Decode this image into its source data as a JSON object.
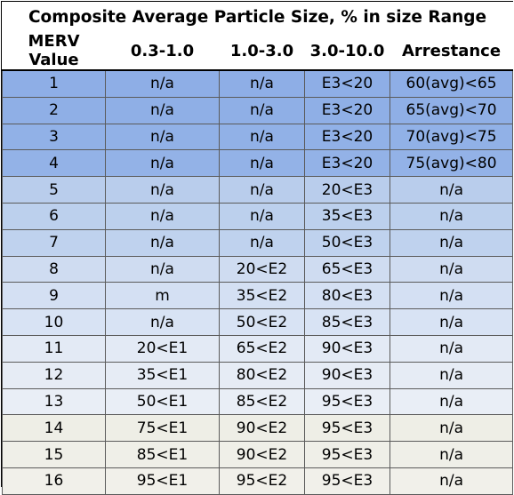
{
  "title": "Composite Average Particle Size, % in size Range",
  "headers": [
    "MERV Value",
    "0.3-1.0",
    "1.0-3.0",
    "3.0-10.0",
    "Arrestance"
  ],
  "rows": [
    {
      "merv": "1",
      "r1": "n/a",
      "r2": "n/a",
      "r3": "E3<20",
      "arr": "60(avg)<65",
      "color": "#8eaee6"
    },
    {
      "merv": "2",
      "r1": "n/a",
      "r2": "n/a",
      "r3": "E3<20",
      "arr": "65(avg)<70",
      "color": "#8fafe6"
    },
    {
      "merv": "3",
      "r1": "n/a",
      "r2": "n/a",
      "r3": "E3<20",
      "arr": "70(avg)<75",
      "color": "#91b1e7"
    },
    {
      "merv": "4",
      "r1": "n/a",
      "r2": "n/a",
      "r3": "E3<20",
      "arr": "75(avg)<80",
      "color": "#93b2e7"
    },
    {
      "merv": "5",
      "r1": "n/a",
      "r2": "n/a",
      "r3": "20<E3",
      "arr": "n/a",
      "color": "#b9cdec"
    },
    {
      "merv": "6",
      "r1": "n/a",
      "r2": "n/a",
      "r3": "35<E3",
      "arr": "n/a",
      "color": "#bcd0ed"
    },
    {
      "merv": "7",
      "r1": "n/a",
      "r2": "n/a",
      "r3": "50<E3",
      "arr": "n/a",
      "color": "#bfd2ee"
    },
    {
      "merv": "8",
      "r1": "n/a",
      "r2": "20<E2",
      "r3": "65<E3",
      "arr": "n/a",
      "color": "#cfdcf1"
    },
    {
      "merv": "9",
      "r1": "m",
      "r2": "35<E2",
      "r3": "80<E3",
      "arr": "n/a",
      "color": "#d4e0f3"
    },
    {
      "merv": "10",
      "r1": "n/a",
      "r2": "50<E2",
      "r3": "85<E3",
      "arr": "n/a",
      "color": "#d8e3f4"
    },
    {
      "merv": "11",
      "r1": "20<E1",
      "r2": "65<E2",
      "r3": "90<E3",
      "arr": "n/a",
      "color": "#e3eaf5"
    },
    {
      "merv": "12",
      "r1": "35<E1",
      "r2": "80<E2",
      "r3": "90<E3",
      "arr": "n/a",
      "color": "#e6ecf5"
    },
    {
      "merv": "13",
      "r1": "50<E1",
      "r2": "85<E2",
      "r3": "95<E3",
      "arr": "n/a",
      "color": "#e9eef6"
    },
    {
      "merv": "14",
      "r1": "75<E1",
      "r2": "90<E2",
      "r3": "95<E3",
      "arr": "n/a",
      "color": "#eeeee6"
    },
    {
      "merv": "15",
      "r1": "85<E1",
      "r2": "90<E2",
      "r3": "95<E3",
      "arr": "n/a",
      "color": "#efefe8"
    },
    {
      "merv": "16",
      "r1": "95<E1",
      "r2": "95<E2",
      "r3": "95<E3",
      "arr": "n/a",
      "color": "#f1f0ea"
    }
  ]
}
